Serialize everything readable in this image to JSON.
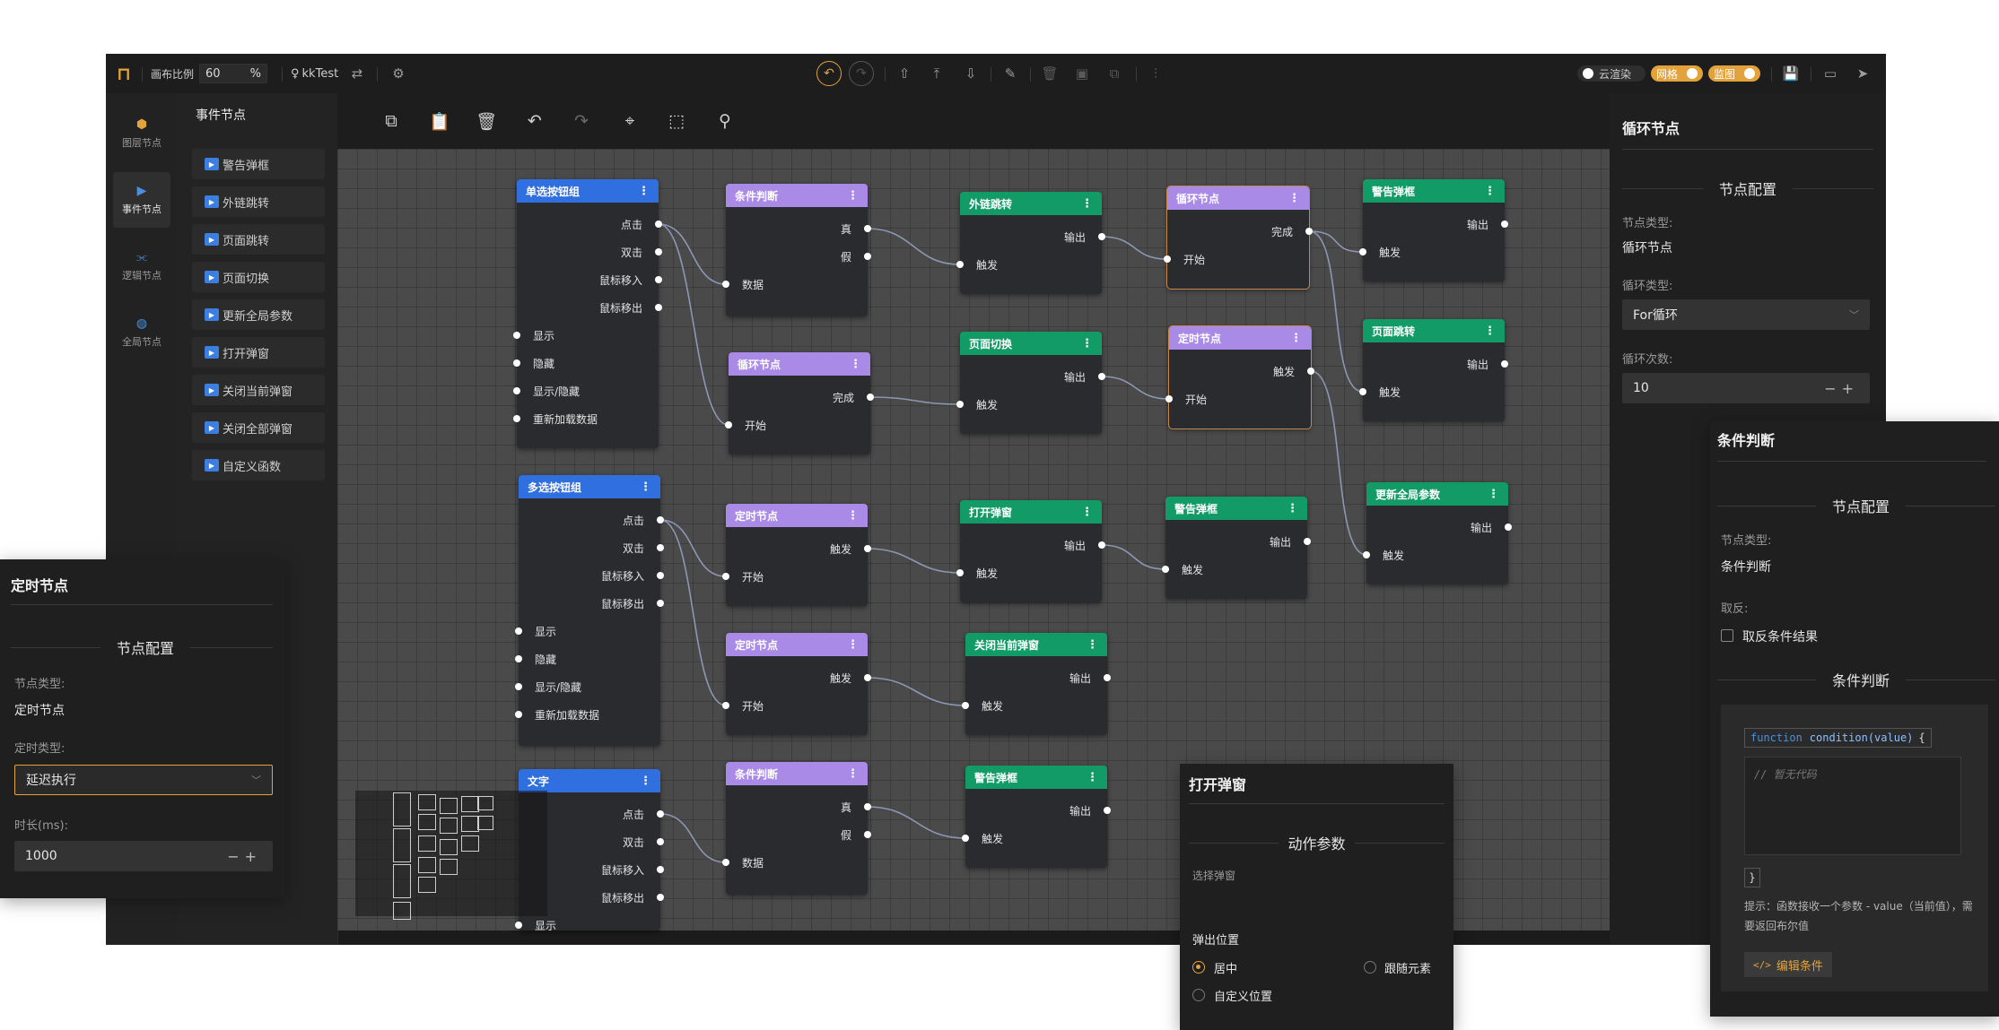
{
  "colors": {
    "accent": "#e3a33a",
    "node_blue": "#2f6fe0",
    "node_purple": "#a98ae6",
    "node_green": "#129b67",
    "canvas_bg": "#4a4a4a"
  },
  "topbar": {
    "zoom_label": "画布比例",
    "zoom_value": "60",
    "zoom_unit": "%",
    "project_name": "kkTest",
    "toggles": [
      {
        "label": "云渲染",
        "on": false
      },
      {
        "label": "网格",
        "on": true
      },
      {
        "label": "监图",
        "on": true
      }
    ],
    "icons": [
      "logo-icon",
      "swap-icon",
      "settings-icon",
      "undo-icon",
      "redo-icon",
      "upload-icon",
      "upload-top-icon",
      "download-icon",
      "brush-icon",
      "delete-icon",
      "frame-icon",
      "group-icon",
      "align-icon",
      "save-icon",
      "preview-icon",
      "publish-icon"
    ]
  },
  "rail": {
    "items": [
      {
        "label": "图层节点",
        "icon": "cube-icon"
      },
      {
        "label": "事件节点",
        "icon": "play-icon",
        "active": true
      },
      {
        "label": "逻辑节点",
        "icon": "logic-icon"
      },
      {
        "label": "全局节点",
        "icon": "globe-icon"
      }
    ]
  },
  "palette": {
    "title": "事件节点",
    "items": [
      "警告弹框",
      "外链跳转",
      "页面跳转",
      "页面切换",
      "更新全局参数",
      "打开弹窗",
      "关闭当前弹窗",
      "关闭全部弹窗",
      "自定义函数"
    ]
  },
  "canvas_toolbar": {
    "icons": [
      "copy-icon",
      "paste-icon",
      "trash-icon",
      "undo-icon",
      "redo-icon",
      "fit-view-icon",
      "select-area-icon",
      "layout-icon"
    ]
  },
  "nodes": {
    "n1": {
      "title": "单选按钮组",
      "outs": [
        "点击",
        "双击",
        "鼠标移入",
        "鼠标移出"
      ],
      "ins": [
        "显示",
        "隐藏",
        "显示/隐藏",
        "重新加载数据"
      ]
    },
    "n2": {
      "title": "多选按钮组",
      "outs": [
        "点击",
        "双击",
        "鼠标移入",
        "鼠标移出"
      ],
      "ins": [
        "显示",
        "隐藏",
        "显示/隐藏",
        "重新加载数据"
      ]
    },
    "n3": {
      "title": "文字",
      "outs": [
        "点击",
        "双击",
        "鼠标移入",
        "鼠标移出"
      ],
      "ins": [
        "显示"
      ]
    },
    "c1": {
      "title": "条件判断",
      "outs": [
        "真",
        "假"
      ],
      "ins": [
        "数据"
      ]
    },
    "c2": {
      "title": "条件判断",
      "outs": [
        "真",
        "假"
      ],
      "ins": [
        "数据"
      ]
    },
    "l1": {
      "title": "循环节点",
      "outs": [
        "完成"
      ],
      "ins": [
        "开始"
      ]
    },
    "l2": {
      "title": "循环节点",
      "outs": [
        "完成"
      ],
      "ins": [
        "开始"
      ]
    },
    "t1": {
      "title": "定时节点",
      "outs": [
        "触发"
      ],
      "ins": [
        "开始"
      ]
    },
    "t2": {
      "title": "定时节点",
      "outs": [
        "触发"
      ],
      "ins": [
        "开始"
      ]
    },
    "t3": {
      "title": "定时节点",
      "outs": [
        "触发"
      ],
      "ins": [
        "开始"
      ]
    },
    "a1": {
      "title": "外链跳转",
      "outs": [
        "输出"
      ],
      "ins": [
        "触发"
      ]
    },
    "a2": {
      "title": "页面切换",
      "outs": [
        "输出"
      ],
      "ins": [
        "触发"
      ]
    },
    "a3": {
      "title": "打开弹窗",
      "outs": [
        "输出"
      ],
      "ins": [
        "触发"
      ]
    },
    "a4": {
      "title": "关闭当前弹窗",
      "outs": [
        "输出"
      ],
      "ins": [
        "触发"
      ]
    },
    "a5": {
      "title": "警告弹框",
      "outs": [
        "输出"
      ],
      "ins": [
        "触发"
      ]
    },
    "a6": {
      "title": "警告弹框",
      "outs": [
        "输出"
      ],
      "ins": [
        "触发"
      ]
    },
    "a7": {
      "title": "警告弹框",
      "outs": [
        "输出"
      ],
      "ins": [
        "触发"
      ]
    },
    "a8": {
      "title": "页面跳转",
      "outs": [
        "输出"
      ],
      "ins": [
        "触发"
      ]
    },
    "a9": {
      "title": "更新全局参数",
      "outs": [
        "输出"
      ],
      "ins": [
        "触发"
      ]
    }
  },
  "right_panel": {
    "title": "循环节点",
    "section": "节点配置",
    "type_label": "节点类型:",
    "type_value": "循环节点",
    "loop_type_label": "循环类型:",
    "loop_type_value": "For循环",
    "loop_count_label": "循环次数:",
    "loop_count_value": "10"
  },
  "timer_panel": {
    "title": "定时节点",
    "section": "节点配置",
    "type_label": "节点类型:",
    "type_value": "定时节点",
    "timer_type_label": "定时类型:",
    "timer_type_value": "延迟执行",
    "duration_label": "时长(ms):",
    "duration_value": "1000"
  },
  "condition_panel": {
    "title": "条件判断",
    "section": "节点配置",
    "type_label": "节点类型:",
    "type_value": "条件判断",
    "negate_label": "取反:",
    "negate_checkbox": "取反条件结果",
    "section2": "条件判断",
    "code_head": "function",
    "code_fn": "condition(value)",
    "code_brace": "{",
    "code_placeholder": "// 暂无代码",
    "code_end": "}",
    "hint": "提示：函数接收一个参数 - value（当前值），需要返回布尔值",
    "edit_button": "编辑条件"
  },
  "popup_panel": {
    "title": "打开弹窗",
    "section": "动作参数",
    "select_label": "选择弹窗",
    "position_label": "弹出位置",
    "options": [
      {
        "label": "居中",
        "checked": true
      },
      {
        "label": "跟随元素",
        "checked": false
      },
      {
        "label": "自定义位置",
        "checked": false
      }
    ]
  }
}
